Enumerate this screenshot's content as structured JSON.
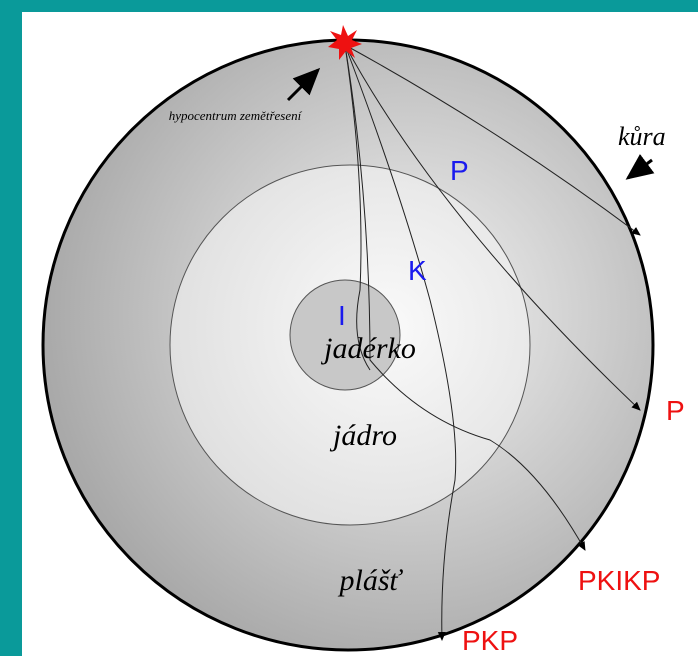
{
  "labels": {
    "hypocenter": "hypocentrum zemětřesení",
    "crust": "kůra",
    "inner_core": "jadérko",
    "core": "jádro",
    "mantle": "plášť"
  },
  "wave_labels": {
    "p_mantle": "P",
    "k_core": "K",
    "i_inner": "I"
  },
  "arrivals": {
    "p_far": "P",
    "pkikp": "PKIKP",
    "pkp": "PKP"
  }
}
